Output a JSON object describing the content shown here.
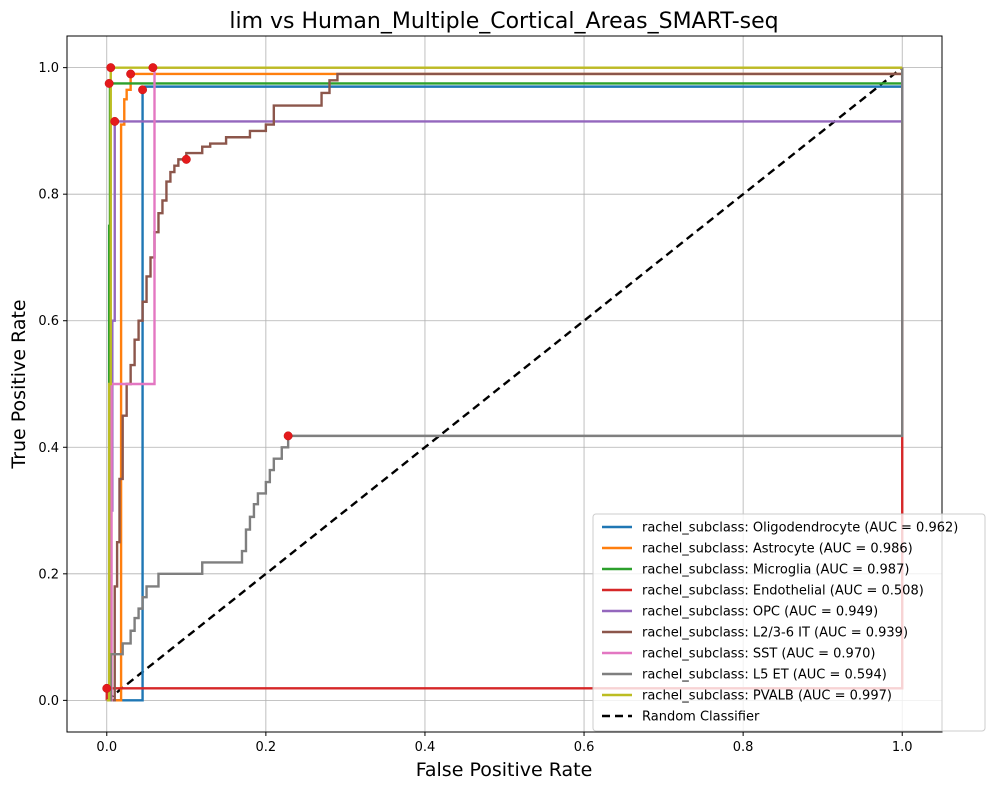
{
  "chart_data": {
    "type": "line",
    "title": "lim vs Human_Multiple_Cortical_Areas_SMART-seq",
    "xlabel": "False Positive Rate",
    "ylabel": "True Positive Rate",
    "xlim": [
      -0.05,
      1.05
    ],
    "ylim": [
      -0.05,
      1.05
    ],
    "xticks": [
      "0.0",
      "0.2",
      "0.4",
      "0.6",
      "0.8",
      "1.0"
    ],
    "yticks": [
      "0.0",
      "0.2",
      "0.4",
      "0.6",
      "0.8",
      "1.0"
    ],
    "grid": true,
    "legend_position": "lower-right",
    "series": [
      {
        "name": "rachel_subclass: Oligodendrocyte (AUC = 0.962)",
        "color": "#1f77b4",
        "x": [
          0,
          0.045,
          0.045,
          0.048,
          1.0,
          1.0
        ],
        "y": [
          0,
          0,
          0.965,
          0.97,
          0.97,
          1.0
        ],
        "marker": [
          0.045,
          0.965
        ]
      },
      {
        "name": "rachel_subclass: Astrocyte (AUC = 0.986)",
        "color": "#ff7f0e",
        "x": [
          0,
          0.018,
          0.018,
          0.022,
          0.022,
          0.025,
          0.025,
          0.03,
          0.03,
          1.0,
          1.0
        ],
        "y": [
          0,
          0,
          0.91,
          0.91,
          0.95,
          0.95,
          0.965,
          0.965,
          0.99,
          0.99,
          1.0
        ],
        "marker": [
          0.03,
          0.99
        ]
      },
      {
        "name": "rachel_subclass: Microglia (AUC = 0.987)",
        "color": "#2ca02c",
        "x": [
          0,
          0.003,
          0.003,
          0.004,
          0.004,
          1.0,
          1.0
        ],
        "y": [
          0,
          0,
          0.75,
          0.75,
          0.975,
          0.975,
          1.0
        ],
        "marker": [
          0.003,
          0.975
        ]
      },
      {
        "name": "rachel_subclass: Endothelial (AUC = 0.508)",
        "color": "#d62728",
        "x": [
          0,
          0,
          1.0,
          1.0
        ],
        "y": [
          0,
          0.019,
          0.019,
          1.0
        ],
        "marker": [
          0,
          0.019
        ]
      },
      {
        "name": "rachel_subclass: OPC (AUC = 0.949)",
        "color": "#9467bd",
        "x": [
          0,
          0.004,
          0.004,
          0.007,
          0.007,
          0.01,
          0.01,
          1.0,
          1.0
        ],
        "y": [
          0,
          0,
          0.3,
          0.3,
          0.6,
          0.6,
          0.915,
          0.915,
          1.0
        ],
        "marker": [
          0.01,
          0.915
        ]
      },
      {
        "name": "rachel_subclass: L2/3-6 IT (AUC = 0.939)",
        "color": "#8c564b",
        "x": [
          0,
          0.01,
          0.01,
          0.013,
          0.013,
          0.016,
          0.016,
          0.02,
          0.02,
          0.025,
          0.025,
          0.03,
          0.03,
          0.035,
          0.035,
          0.04,
          0.04,
          0.045,
          0.045,
          0.05,
          0.05,
          0.055,
          0.055,
          0.06,
          0.06,
          0.065,
          0.065,
          0.07,
          0.07,
          0.075,
          0.075,
          0.08,
          0.08,
          0.085,
          0.085,
          0.09,
          0.09,
          0.1,
          0.1,
          0.12,
          0.12,
          0.13,
          0.13,
          0.15,
          0.15,
          0.18,
          0.18,
          0.2,
          0.2,
          0.21,
          0.21,
          0.27,
          0.27,
          0.28,
          0.28,
          0.29,
          0.29,
          1.0,
          1.0
        ],
        "y": [
          0,
          0,
          0.18,
          0.18,
          0.25,
          0.25,
          0.35,
          0.35,
          0.45,
          0.45,
          0.5,
          0.5,
          0.53,
          0.53,
          0.57,
          0.57,
          0.6,
          0.6,
          0.63,
          0.63,
          0.67,
          0.67,
          0.7,
          0.7,
          0.74,
          0.74,
          0.77,
          0.77,
          0.79,
          0.79,
          0.82,
          0.82,
          0.835,
          0.835,
          0.845,
          0.845,
          0.855,
          0.855,
          0.865,
          0.865,
          0.875,
          0.875,
          0.88,
          0.88,
          0.89,
          0.89,
          0.9,
          0.9,
          0.91,
          0.91,
          0.94,
          0.94,
          0.96,
          0.96,
          0.98,
          0.98,
          0.99,
          0.99,
          1.0
        ],
        "marker": [
          0.1,
          0.855
        ]
      },
      {
        "name": "rachel_subclass: SST (AUC = 0.970)",
        "color": "#e377c2",
        "x": [
          0,
          0.006,
          0.006,
          0.06,
          0.06,
          1.0,
          1.0
        ],
        "y": [
          0,
          0,
          0.5,
          0.5,
          1.0,
          1.0,
          1.0
        ],
        "marker": [
          0.058,
          1.0
        ]
      },
      {
        "name": "rachel_subclass: L5 ET (AUC = 0.594)",
        "color": "#7f7f7f",
        "x": [
          0,
          0.005,
          0.005,
          0.02,
          0.02,
          0.03,
          0.03,
          0.035,
          0.035,
          0.04,
          0.04,
          0.045,
          0.045,
          0.05,
          0.05,
          0.065,
          0.065,
          0.12,
          0.12,
          0.17,
          0.17,
          0.175,
          0.175,
          0.18,
          0.18,
          0.185,
          0.185,
          0.19,
          0.19,
          0.2,
          0.2,
          0.205,
          0.205,
          0.21,
          0.21,
          0.22,
          0.22,
          0.228,
          0.228,
          1.0,
          1.0
        ],
        "y": [
          0,
          0,
          0.073,
          0.073,
          0.09,
          0.09,
          0.11,
          0.11,
          0.13,
          0.13,
          0.145,
          0.145,
          0.163,
          0.163,
          0.18,
          0.18,
          0.2,
          0.2,
          0.218,
          0.218,
          0.236,
          0.236,
          0.27,
          0.27,
          0.29,
          0.29,
          0.31,
          0.31,
          0.327,
          0.327,
          0.345,
          0.345,
          0.364,
          0.364,
          0.382,
          0.382,
          0.4,
          0.4,
          0.418,
          0.418,
          1.0
        ],
        "marker": [
          0.228,
          0.418
        ]
      },
      {
        "name": "rachel_subclass: PVALB (AUC = 0.997)",
        "color": "#bcbd22",
        "x": [
          0,
          0.003,
          0.003,
          0.005,
          0.005,
          1.0,
          1.0
        ],
        "y": [
          0,
          0,
          0.5,
          0.5,
          1.0,
          1.0,
          1.0
        ],
        "marker": [
          0.005,
          1.0
        ]
      }
    ],
    "reference_line": {
      "name": "Random Classifier",
      "color": "#000000",
      "x": [
        0,
        1
      ],
      "y": [
        0,
        1
      ]
    }
  }
}
